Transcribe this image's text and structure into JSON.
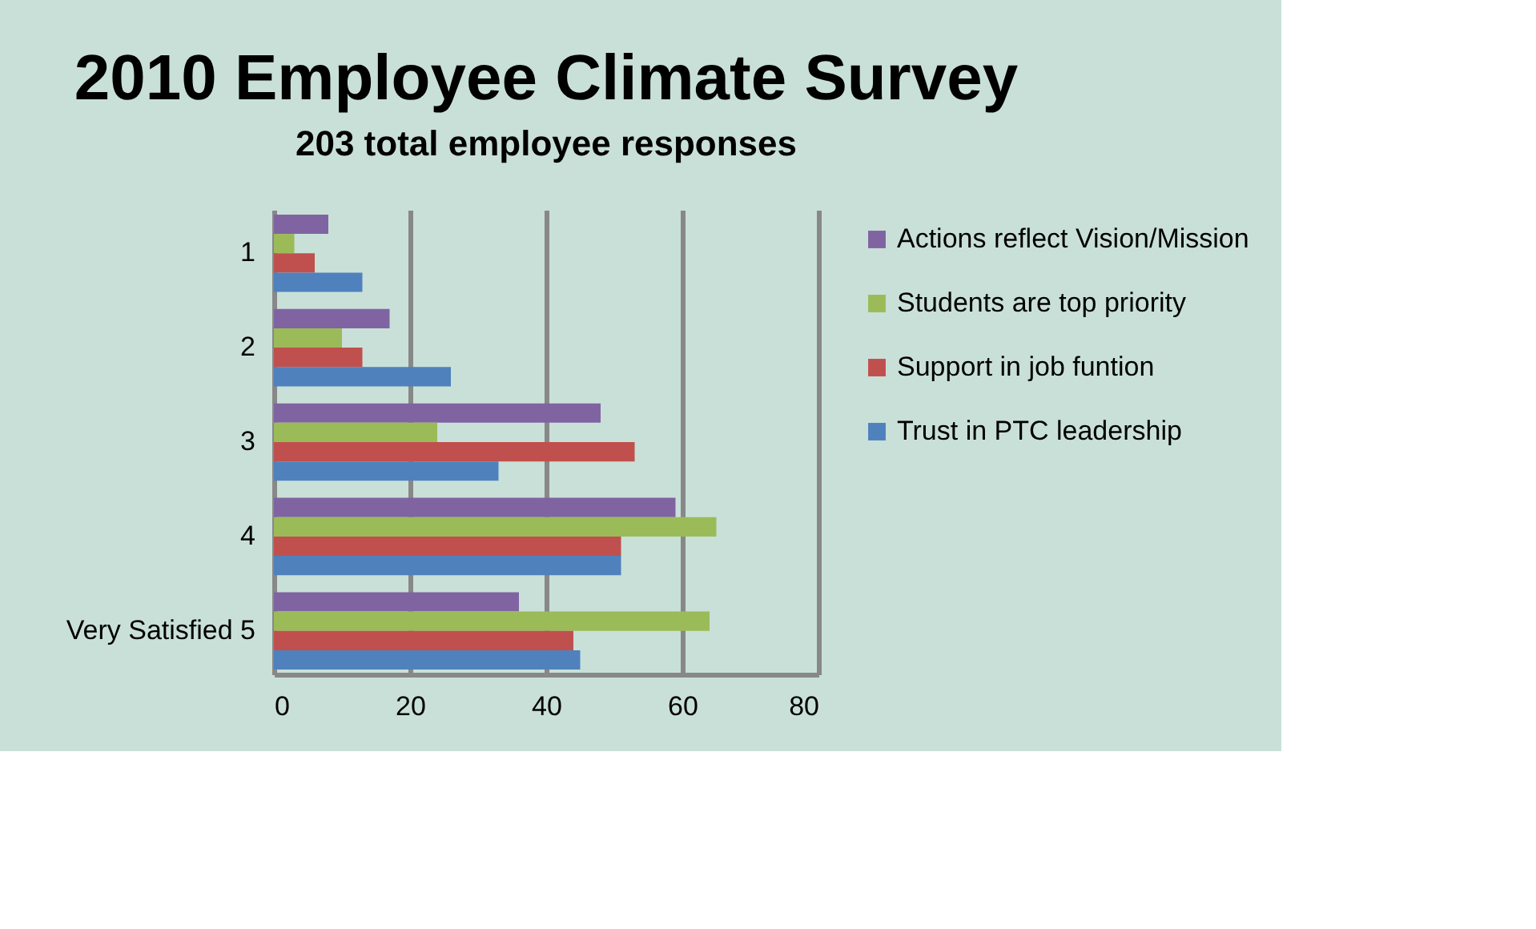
{
  "chart_data": {
    "type": "bar",
    "orientation": "horizontal",
    "title": "2010 Employee Climate Survey",
    "subtitle": "203 total employee responses",
    "categories": [
      "1",
      "2",
      "3",
      "4",
      "Very Satisfied 5"
    ],
    "series": [
      {
        "name": "Actions reflect Vision/Mission",
        "color": "#8064a2",
        "values": [
          8,
          17,
          48,
          59,
          36
        ]
      },
      {
        "name": "Students are top priority",
        "color": "#9bbb59",
        "values": [
          3,
          10,
          24,
          65,
          64
        ]
      },
      {
        "name": "Support in job funtion",
        "color": "#c0504d",
        "values": [
          6,
          13,
          53,
          51,
          44
        ]
      },
      {
        "name": "Trust in PTC leadership",
        "color": "#4f81bd",
        "values": [
          13,
          26,
          33,
          51,
          45
        ]
      }
    ],
    "xlim": [
      0,
      80
    ],
    "xticks": [
      0,
      20,
      40,
      60,
      80
    ],
    "grid": "x",
    "legend": "right"
  }
}
